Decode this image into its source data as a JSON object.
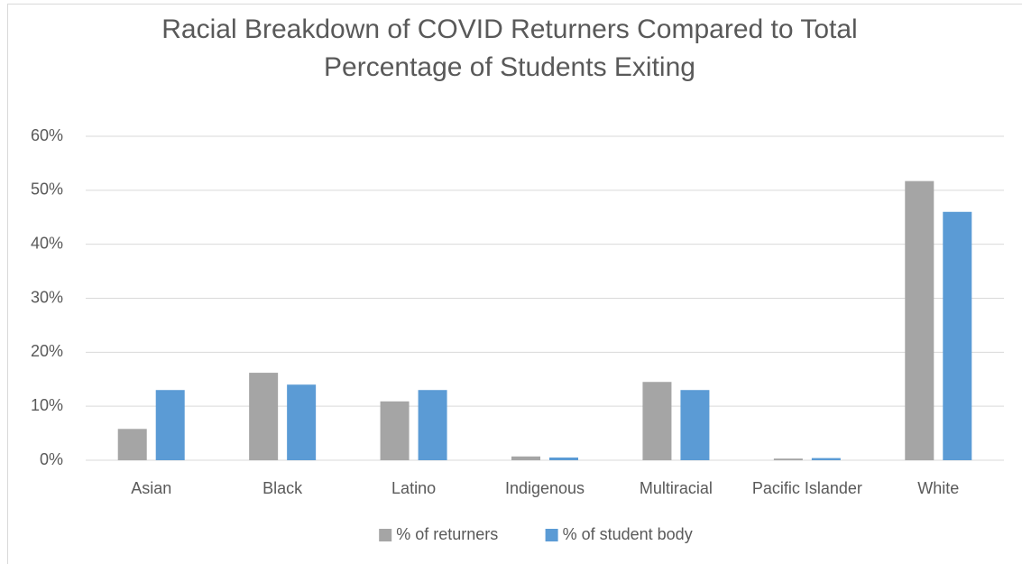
{
  "chart_data": {
    "type": "bar",
    "title": "Racial Breakdown of COVID Returners Compared to Total Percentage of Students Exiting",
    "categories": [
      "Asian",
      "Black",
      "Latino",
      "Indigenous",
      "Multiracial",
      "Pacific Islander",
      "White"
    ],
    "series": [
      {
        "name": "% of returners",
        "color": "#a5a5a5",
        "values": [
          5.8,
          16.2,
          10.9,
          0.7,
          14.5,
          0.3,
          51.7
        ]
      },
      {
        "name": "% of student body",
        "color": "#5b9bd5",
        "values": [
          13,
          14,
          13,
          0.5,
          13,
          0.4,
          46
        ]
      }
    ],
    "ylim": [
      0,
      60
    ],
    "yticks": [
      {
        "value": 0,
        "label": "0%"
      },
      {
        "value": 10,
        "label": "10%"
      },
      {
        "value": 20,
        "label": "20%"
      },
      {
        "value": 30,
        "label": "30%"
      },
      {
        "value": 40,
        "label": "40%"
      },
      {
        "value": 50,
        "label": "50%"
      },
      {
        "value": 60,
        "label": "60%"
      }
    ],
    "grid": true,
    "legend": "bottom"
  }
}
